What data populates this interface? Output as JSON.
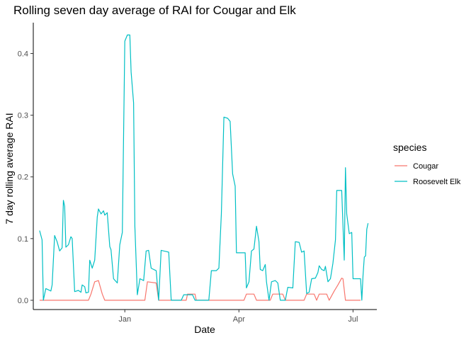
{
  "chart_data": {
    "type": "line",
    "title": "Rolling seven day average of RAI for Cougar and Elk",
    "xlabel": "Date",
    "ylabel": "7 day rolling average RAI",
    "x_ticks": [
      {
        "label": "Jan",
        "value": "2020-01-01"
      },
      {
        "label": "Apr",
        "value": "2020-04-01"
      },
      {
        "label": "Jul",
        "value": "2020-07-01"
      }
    ],
    "y_ticks": [
      0.0,
      0.1,
      0.2,
      0.3,
      0.4
    ],
    "y_tick_labels": [
      "0.0",
      "0.1",
      "0.2",
      "0.3",
      "0.4"
    ],
    "xlim": [
      "2019-10-20",
      "2020-07-20"
    ],
    "ylim": [
      -0.015,
      0.45
    ],
    "grid": false,
    "legend": {
      "title": "species",
      "position": "right"
    },
    "colors": {
      "Cougar": "#F8766D",
      "Roosevelt Elk": "#00BFC4"
    },
    "series": [
      {
        "name": "Cougar",
        "points": [
          [
            "2019-10-25",
            0.0
          ],
          [
            "2019-12-03",
            0.0
          ],
          [
            "2019-12-05",
            0.01
          ],
          [
            "2019-12-08",
            0.03
          ],
          [
            "2019-12-11",
            0.032
          ],
          [
            "2019-12-14",
            0.01
          ],
          [
            "2019-12-16",
            0.0
          ],
          [
            "2020-01-17",
            0.0
          ],
          [
            "2020-01-19",
            0.03
          ],
          [
            "2020-01-26",
            0.028
          ],
          [
            "2020-01-28",
            0.0
          ],
          [
            "2020-02-19",
            0.0
          ],
          [
            "2020-02-20",
            0.01
          ],
          [
            "2020-02-26",
            0.01
          ],
          [
            "2020-02-27",
            0.0
          ],
          [
            "2020-04-05",
            0.0
          ],
          [
            "2020-04-07",
            0.01
          ],
          [
            "2020-04-13",
            0.01
          ],
          [
            "2020-04-15",
            0.0
          ],
          [
            "2020-04-26",
            0.0
          ],
          [
            "2020-04-28",
            0.01
          ],
          [
            "2020-05-06",
            0.01
          ],
          [
            "2020-05-08",
            0.0
          ],
          [
            "2020-05-23",
            0.0
          ],
          [
            "2020-05-25",
            0.01
          ],
          [
            "2020-05-31",
            0.01
          ],
          [
            "2020-06-02",
            0.0
          ],
          [
            "2020-06-04",
            0.01
          ],
          [
            "2020-06-10",
            0.01
          ],
          [
            "2020-06-12",
            0.0
          ],
          [
            "2020-06-16",
            0.015
          ],
          [
            "2020-06-19",
            0.025
          ],
          [
            "2020-06-22",
            0.036
          ],
          [
            "2020-06-23",
            0.035
          ],
          [
            "2020-06-25",
            0.0
          ],
          [
            "2020-07-07",
            0.0
          ]
        ]
      },
      {
        "name": "Roosevelt Elk",
        "points": [
          [
            "2019-10-25",
            0.113
          ],
          [
            "2019-10-27",
            0.098
          ],
          [
            "2019-10-28",
            0.0
          ],
          [
            "2019-10-30",
            0.019
          ],
          [
            "2019-11-01",
            0.017
          ],
          [
            "2019-11-03",
            0.015
          ],
          [
            "2019-11-04",
            0.025
          ],
          [
            "2019-11-06",
            0.105
          ],
          [
            "2019-11-08",
            0.095
          ],
          [
            "2019-11-10",
            0.08
          ],
          [
            "2019-11-12",
            0.085
          ],
          [
            "2019-11-13",
            0.162
          ],
          [
            "2019-11-14",
            0.152
          ],
          [
            "2019-11-15",
            0.086
          ],
          [
            "2019-11-17",
            0.09
          ],
          [
            "2019-11-19",
            0.103
          ],
          [
            "2019-11-20",
            0.1
          ],
          [
            "2019-11-22",
            0.014
          ],
          [
            "2019-11-25",
            0.016
          ],
          [
            "2019-11-27",
            0.013
          ],
          [
            "2019-11-28",
            0.025
          ],
          [
            "2019-11-30",
            0.022
          ],
          [
            "2019-12-01",
            0.012
          ],
          [
            "2019-12-03",
            0.013
          ],
          [
            "2019-12-04",
            0.065
          ],
          [
            "2019-12-06",
            0.052
          ],
          [
            "2019-12-08",
            0.065
          ],
          [
            "2019-12-10",
            0.135
          ],
          [
            "2019-12-11",
            0.148
          ],
          [
            "2019-12-13",
            0.14
          ],
          [
            "2019-12-15",
            0.145
          ],
          [
            "2019-12-16",
            0.138
          ],
          [
            "2019-12-18",
            0.142
          ],
          [
            "2019-12-20",
            0.087
          ],
          [
            "2019-12-21",
            0.082
          ],
          [
            "2019-12-23",
            0.035
          ],
          [
            "2019-12-26",
            0.028
          ],
          [
            "2019-12-28",
            0.09
          ],
          [
            "2019-12-30",
            0.11
          ],
          [
            "2020-01-01",
            0.42
          ],
          [
            "2020-01-03",
            0.43
          ],
          [
            "2020-01-05",
            0.43
          ],
          [
            "2020-01-06",
            0.37
          ],
          [
            "2020-01-08",
            0.32
          ],
          [
            "2020-01-09",
            0.12
          ],
          [
            "2020-01-11",
            0.009
          ],
          [
            "2020-01-13",
            0.035
          ],
          [
            "2020-01-16",
            0.032
          ],
          [
            "2020-01-18",
            0.08
          ],
          [
            "2020-01-20",
            0.081
          ],
          [
            "2020-01-22",
            0.052
          ],
          [
            "2020-01-24",
            0.05
          ],
          [
            "2020-01-26",
            0.048
          ],
          [
            "2020-01-28",
            0.0
          ],
          [
            "2020-01-30",
            0.081
          ],
          [
            "2020-02-01",
            0.08
          ],
          [
            "2020-02-03",
            0.079
          ],
          [
            "2020-02-05",
            0.078
          ],
          [
            "2020-02-07",
            0.0
          ],
          [
            "2020-02-15",
            0.0
          ],
          [
            "2020-02-17",
            0.009
          ],
          [
            "2020-02-24",
            0.009
          ],
          [
            "2020-02-26",
            0.0
          ],
          [
            "2020-03-08",
            0.0
          ],
          [
            "2020-03-10",
            0.048
          ],
          [
            "2020-03-14",
            0.048
          ],
          [
            "2020-03-16",
            0.052
          ],
          [
            "2020-03-18",
            0.14
          ],
          [
            "2020-03-20",
            0.297
          ],
          [
            "2020-03-23",
            0.295
          ],
          [
            "2020-03-25",
            0.29
          ],
          [
            "2020-03-27",
            0.205
          ],
          [
            "2020-03-29",
            0.185
          ],
          [
            "2020-03-30",
            0.077
          ],
          [
            "2020-04-06",
            0.077
          ],
          [
            "2020-04-07",
            0.02
          ],
          [
            "2020-04-09",
            0.03
          ],
          [
            "2020-04-11",
            0.08
          ],
          [
            "2020-04-13",
            0.083
          ],
          [
            "2020-04-15",
            0.12
          ],
          [
            "2020-04-17",
            0.095
          ],
          [
            "2020-04-18",
            0.05
          ],
          [
            "2020-04-20",
            0.048
          ],
          [
            "2020-04-22",
            0.058
          ],
          [
            "2020-04-23",
            0.03
          ],
          [
            "2020-04-25",
            0.0
          ],
          [
            "2020-04-27",
            0.03
          ],
          [
            "2020-04-30",
            0.032
          ],
          [
            "2020-05-02",
            0.028
          ],
          [
            "2020-05-04",
            0.0
          ],
          [
            "2020-05-08",
            0.0
          ],
          [
            "2020-05-10",
            0.021
          ],
          [
            "2020-05-14",
            0.02
          ],
          [
            "2020-05-16",
            0.095
          ],
          [
            "2020-05-19",
            0.094
          ],
          [
            "2020-05-21",
            0.078
          ],
          [
            "2020-05-23",
            0.08
          ],
          [
            "2020-05-25",
            0.011
          ],
          [
            "2020-05-27",
            0.013
          ],
          [
            "2020-05-29",
            0.035
          ],
          [
            "2020-06-01",
            0.036
          ],
          [
            "2020-06-03",
            0.045
          ],
          [
            "2020-06-04",
            0.056
          ],
          [
            "2020-06-06",
            0.05
          ],
          [
            "2020-06-08",
            0.048
          ],
          [
            "2020-06-09",
            0.055
          ],
          [
            "2020-06-11",
            0.03
          ],
          [
            "2020-06-13",
            0.035
          ],
          [
            "2020-06-15",
            0.06
          ],
          [
            "2020-06-17",
            0.098
          ],
          [
            "2020-06-18",
            0.178
          ],
          [
            "2020-06-22",
            0.178
          ],
          [
            "2020-06-24",
            0.065
          ],
          [
            "2020-06-25",
            0.215
          ],
          [
            "2020-06-26",
            0.14
          ],
          [
            "2020-06-28",
            0.108
          ],
          [
            "2020-06-30",
            0.11
          ],
          [
            "2020-07-01",
            0.035
          ],
          [
            "2020-07-07",
            0.035
          ],
          [
            "2020-07-08",
            0.0
          ],
          [
            "2020-07-09",
            0.04
          ],
          [
            "2020-07-10",
            0.07
          ],
          [
            "2020-07-11",
            0.072
          ],
          [
            "2020-07-12",
            0.115
          ],
          [
            "2020-07-13",
            0.125
          ]
        ]
      }
    ]
  }
}
